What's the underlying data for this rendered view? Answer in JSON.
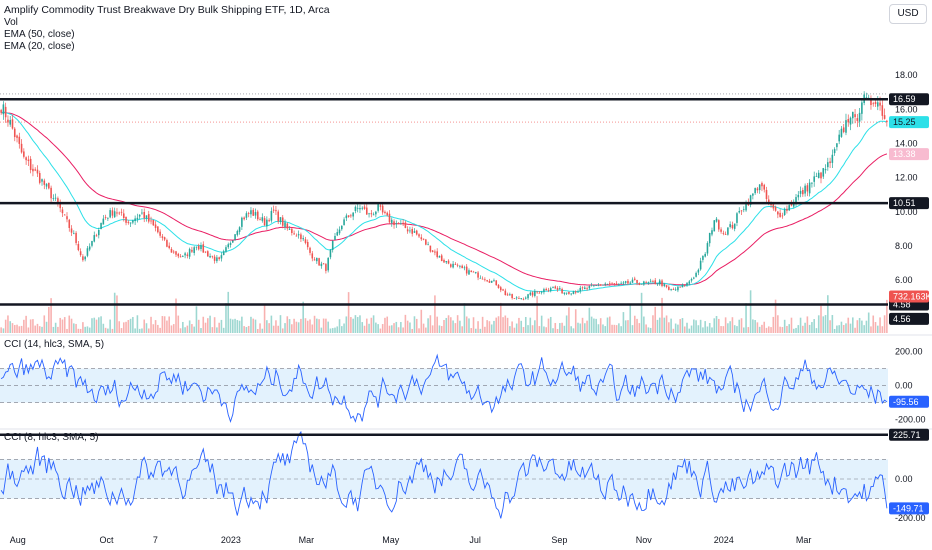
{
  "header": {
    "title": "Amplify Commodity Trust Breakwave Dry Bulk Shipping ETF, 1D, Arca",
    "vol_label": "Vol",
    "ema50_label": "EMA (50, close)",
    "ema20_label": "EMA (20, close)",
    "currency": "USD"
  },
  "colors": {
    "up": "#26a69a",
    "down": "#ef5350",
    "ema20": "#2de0e8",
    "ema50": "#e91e63",
    "cci": "#2962ff",
    "band": "#e3f2fd",
    "hline": "#131722"
  },
  "chart_data": [
    {
      "type": "candlestick",
      "title": "Amplify Commodity Trust Breakwave Dry Bulk Shipping ETF, 1D, Arca",
      "ylim": [
        4.2,
        19.0
      ],
      "y_ticks": [
        "18.00",
        "16.00",
        "14.00",
        "12.00",
        "10.00",
        "8.00",
        "6.00"
      ],
      "x_ticks": [
        "Aug",
        "Oct",
        "7",
        "2023",
        "Mar",
        "May",
        "Jul",
        "Sep",
        "Nov",
        "2024",
        "Mar"
      ],
      "price_path": [
        {
          "t": 0,
          "c": 16.2
        },
        {
          "t": 4,
          "c": 15.2
        },
        {
          "t": 10,
          "c": 13.1
        },
        {
          "t": 18,
          "c": 11.8
        },
        {
          "t": 25,
          "c": 10.4
        },
        {
          "t": 32,
          "c": 8.6
        },
        {
          "t": 36,
          "c": 7.2
        },
        {
          "t": 40,
          "c": 8.2
        },
        {
          "t": 45,
          "c": 9.6
        },
        {
          "t": 50,
          "c": 10.1
        },
        {
          "t": 56,
          "c": 9.4
        },
        {
          "t": 62,
          "c": 9.9
        },
        {
          "t": 68,
          "c": 9.0
        },
        {
          "t": 74,
          "c": 7.8
        },
        {
          "t": 80,
          "c": 7.3
        },
        {
          "t": 86,
          "c": 8.1
        },
        {
          "t": 90,
          "c": 7.6
        },
        {
          "t": 96,
          "c": 7.1
        },
        {
          "t": 100,
          "c": 8.0
        },
        {
          "t": 106,
          "c": 9.6
        },
        {
          "t": 110,
          "c": 10.0
        },
        {
          "t": 116,
          "c": 9.4
        },
        {
          "t": 120,
          "c": 10.0
        },
        {
          "t": 126,
          "c": 9.0
        },
        {
          "t": 132,
          "c": 8.6
        },
        {
          "t": 136,
          "c": 7.6
        },
        {
          "t": 140,
          "c": 7.0
        },
        {
          "t": 143,
          "c": 6.7
        },
        {
          "t": 146,
          "c": 8.1
        },
        {
          "t": 150,
          "c": 9.3
        },
        {
          "t": 154,
          "c": 9.9
        },
        {
          "t": 158,
          "c": 10.3
        },
        {
          "t": 162,
          "c": 9.8
        },
        {
          "t": 166,
          "c": 10.2
        },
        {
          "t": 170,
          "c": 9.6
        },
        {
          "t": 176,
          "c": 9.2
        },
        {
          "t": 182,
          "c": 8.8
        },
        {
          "t": 188,
          "c": 8.0
        },
        {
          "t": 194,
          "c": 7.2
        },
        {
          "t": 200,
          "c": 6.8
        },
        {
          "t": 206,
          "c": 6.5
        },
        {
          "t": 212,
          "c": 6.2
        },
        {
          "t": 218,
          "c": 5.8
        },
        {
          "t": 222,
          "c": 5.2
        },
        {
          "t": 226,
          "c": 4.9
        },
        {
          "t": 230,
          "c": 5.0
        },
        {
          "t": 236,
          "c": 5.3
        },
        {
          "t": 242,
          "c": 5.6
        },
        {
          "t": 248,
          "c": 5.3
        },
        {
          "t": 254,
          "c": 5.4
        },
        {
          "t": 260,
          "c": 5.6
        },
        {
          "t": 266,
          "c": 5.8
        },
        {
          "t": 272,
          "c": 5.7
        },
        {
          "t": 278,
          "c": 5.9
        },
        {
          "t": 284,
          "c": 5.8
        },
        {
          "t": 290,
          "c": 5.9
        },
        {
          "t": 294,
          "c": 5.4
        },
        {
          "t": 298,
          "c": 5.5
        },
        {
          "t": 302,
          "c": 5.8
        },
        {
          "t": 306,
          "c": 6.4
        },
        {
          "t": 310,
          "c": 7.6
        },
        {
          "t": 314,
          "c": 9.6
        },
        {
          "t": 318,
          "c": 8.8
        },
        {
          "t": 322,
          "c": 9.2
        },
        {
          "t": 326,
          "c": 10.2
        },
        {
          "t": 330,
          "c": 10.8
        },
        {
          "t": 334,
          "c": 11.7
        },
        {
          "t": 338,
          "c": 10.4
        },
        {
          "t": 342,
          "c": 9.8
        },
        {
          "t": 346,
          "c": 10.2
        },
        {
          "t": 350,
          "c": 10.8
        },
        {
          "t": 354,
          "c": 11.3
        },
        {
          "t": 358,
          "c": 11.9
        },
        {
          "t": 362,
          "c": 12.3
        },
        {
          "t": 366,
          "c": 13.1
        },
        {
          "t": 370,
          "c": 14.6
        },
        {
          "t": 374,
          "c": 15.8
        },
        {
          "t": 376,
          "c": 15.2
        },
        {
          "t": 379,
          "c": 16.6
        },
        {
          "t": 382,
          "c": 16.3
        },
        {
          "t": 385,
          "c": 16.7
        },
        {
          "t": 388,
          "c": 15.9
        },
        {
          "t": 390,
          "c": 15.25
        }
      ],
      "horizontal_levels": [
        16.59,
        10.51,
        4.58
      ],
      "price_tags": [
        {
          "label": "16.59",
          "value": 16.59,
          "style": "dark"
        },
        {
          "label": "15.25",
          "value": 15.25,
          "style": "ema20"
        },
        {
          "label": "13.38",
          "value": 13.38,
          "style": "ema50"
        },
        {
          "label": "10.51",
          "value": 10.51,
          "style": "dark"
        },
        {
          "label": "4.58",
          "value": 4.58,
          "style": "dark"
        },
        {
          "label": "4.56",
          "value": 4.56,
          "style": "dark"
        }
      ],
      "volume_tag": "732.163K",
      "ema20_last": 15.25,
      "ema50_last": 13.38
    },
    {
      "type": "line",
      "title": "CCI (14, hlc3, SMA, 5)",
      "ylim": [
        -250,
        280
      ],
      "y_ticks": [
        "200.00",
        "0.00",
        "-200.00"
      ],
      "band": [
        -100,
        100
      ],
      "last_value_label": "-95.56"
    },
    {
      "type": "line",
      "title": "CCI (8, hlc3, SMA, 5)",
      "ylim": [
        -240,
        240
      ],
      "y_ticks": [
        "0.00",
        "-200.00"
      ],
      "band": [
        -100,
        100
      ],
      "horizontal_levels": [
        225.71
      ],
      "tags": [
        {
          "label": "225.71",
          "value": 225.71,
          "style": "dark"
        },
        {
          "label": "-149.71",
          "value": -149.71,
          "style": "cci"
        }
      ]
    }
  ]
}
